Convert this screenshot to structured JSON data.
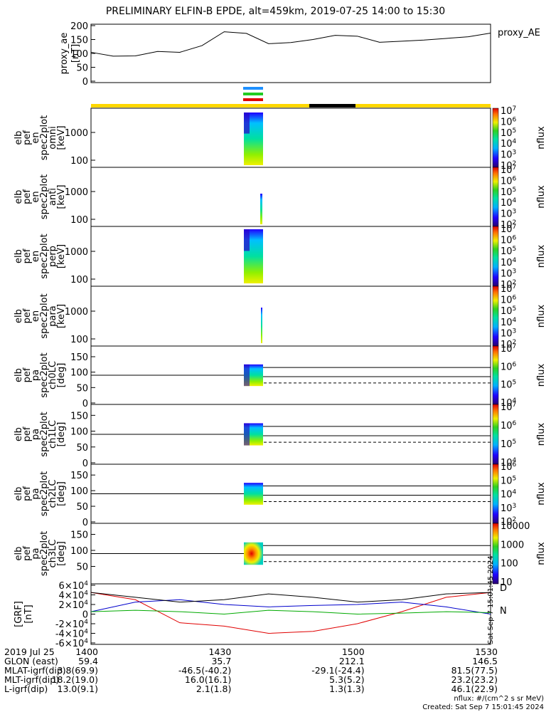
{
  "title": "PRELIMINARY ELFIN-B EPDE, alt=459km, 2019-07-25 14:00 to 15:30",
  "chart_data": [
    {
      "type": "line",
      "name": "proxy_ae",
      "ylabel": "proxy_ae [nT]",
      "legend": "proxy_AE",
      "ylim": [
        0,
        200
      ],
      "yticks": [
        "0",
        "50",
        "100",
        "150",
        "200"
      ],
      "x": [
        0,
        5,
        10,
        15,
        20,
        25,
        30,
        35,
        40,
        45,
        50,
        55,
        60,
        65,
        70,
        75,
        80,
        85,
        90
      ],
      "values": [
        104,
        90,
        91,
        107,
        104,
        128,
        178,
        172,
        135,
        139,
        150,
        165,
        162,
        140,
        144,
        148,
        154,
        160,
        173
      ]
    },
    {
      "type": "heatmap",
      "name": "elb_pef_en_spec2plot_omni",
      "ylabel": "elb pef en spec2plot omni [keV]",
      "yticks": [
        "100",
        "1000"
      ],
      "colorbar": [
        "10^2",
        "10^3",
        "10^4",
        "10^5",
        "10^6",
        "10^7"
      ],
      "zlabel": "nflux"
    },
    {
      "type": "heatmap",
      "name": "elb_pef_en_spec2plot_anti",
      "ylabel": "elb pef en spec2plot anti [keV]",
      "yticks": [
        "100",
        "1000"
      ],
      "colorbar": [
        "10^2",
        "10^3",
        "10^4",
        "10^5",
        "10^6",
        "10^7"
      ],
      "zlabel": "nflux"
    },
    {
      "type": "heatmap",
      "name": "elb_pef_en_spec2plot_perp",
      "ylabel": "elb pef en spec2plot perp [keV]",
      "yticks": [
        "100",
        "1000"
      ],
      "colorbar": [
        "10^2",
        "10^3",
        "10^4",
        "10^5",
        "10^6",
        "10^7"
      ],
      "zlabel": "nflux"
    },
    {
      "type": "heatmap",
      "name": "elb_pef_en_spec2plot_para",
      "ylabel": "elb pef en spec2plot para [keV]",
      "yticks": [
        "100",
        "1000"
      ],
      "colorbar": [
        "10^2",
        "10^3",
        "10^4",
        "10^5",
        "10^6",
        "10^7"
      ],
      "zlabel": "nflux"
    },
    {
      "type": "heatmap",
      "name": "elb_pef_pa_spec2plot_ch0LC",
      "ylabel": "elb pef pa spec2plot ch0LC [deg]",
      "yticks": [
        "0",
        "50",
        "100",
        "150"
      ],
      "colorbar": [
        "10^4",
        "10^5",
        "10^6",
        "10^7"
      ],
      "zlabel": "nflux"
    },
    {
      "type": "heatmap",
      "name": "elb_pef_pa_spec2plot_ch1LC",
      "ylabel": "elb pef pa spec2plot ch1LC [deg]",
      "yticks": [
        "0",
        "50",
        "100",
        "150"
      ],
      "colorbar": [
        "10^4",
        "10^5",
        "10^6",
        "10^7"
      ],
      "zlabel": "nflux"
    },
    {
      "type": "heatmap",
      "name": "elb_pef_pa_spec2plot_ch2LC",
      "ylabel": "elb pef pa spec2plot ch2LC [deg]",
      "yticks": [
        "0",
        "50",
        "100",
        "150"
      ],
      "colorbar": [
        "10^2",
        "10^3",
        "10^4",
        "10^5",
        "10^6"
      ],
      "zlabel": "nflux"
    },
    {
      "type": "heatmap",
      "name": "elb_pef_pa_spec2plot_ch3LC",
      "ylabel": "elb pef pa spec2plot ch3LC [deg]",
      "yticks": [
        "50",
        "100",
        "150"
      ],
      "colorbar": [
        "10",
        "100",
        "1000",
        "10000"
      ],
      "zlabel": "nflux"
    },
    {
      "type": "line",
      "name": "B_GRF",
      "ylabel": "[GRF] [nT]",
      "yticks": [
        "-6×10^4",
        "-4×10^4",
        "-2×10^4",
        "0",
        "2×10^4",
        "4×10^4",
        "6×10^4"
      ],
      "ylim": [
        -60000,
        60000
      ],
      "legend": [
        "D",
        "N"
      ],
      "x": [
        0,
        10,
        20,
        30,
        40,
        50,
        60,
        70,
        80,
        90
      ],
      "series": [
        {
          "name": "D",
          "color": "#e00000",
          "values": [
            45000,
            30000,
            -18000,
            -25000,
            -40000,
            -36000,
            -20000,
            5000,
            35000,
            45000
          ]
        },
        {
          "name": "N",
          "color": "#0000cc",
          "values": [
            5000,
            25000,
            30000,
            20000,
            15000,
            18000,
            20000,
            25000,
            15000,
            0
          ]
        },
        {
          "name": "",
          "color": "#000000",
          "values": [
            45000,
            35000,
            25000,
            30000,
            42000,
            35000,
            25000,
            30000,
            42000,
            45000
          ]
        },
        {
          "name": "",
          "color": "#00aa00",
          "values": [
            5000,
            8000,
            5000,
            0,
            8000,
            5000,
            0,
            2000,
            5000,
            3000
          ]
        }
      ]
    }
  ],
  "time_axis": [
    "1400",
    "1430",
    "1500",
    "1530"
  ],
  "bottom_table": {
    "rows": [
      {
        "label": "2019 Jul 25",
        "values": [
          "1400",
          "1430",
          "1500",
          "1530"
        ]
      },
      {
        "label": "GLON (east)",
        "values": [
          "59.4",
          "35.7",
          "212.1",
          "146.5"
        ]
      },
      {
        "label": "MLAT-igrf(dip)",
        "values": [
          "3.8(69.9)",
          "-46.5(-40.2)",
          "-29.1(-24.4)",
          "81.5(77.5)"
        ]
      },
      {
        "label": "MLT-igrf(dip)",
        "values": [
          "18.2(19.0)",
          "16.0(16.1)",
          "5.3(5.2)",
          "23.2(23.2)"
        ]
      },
      {
        "label": "L-igrf(dip)",
        "values": [
          "13.0(9.1)",
          "2.1(1.8)",
          "1.3(1.3)",
          "46.1(22.9)"
        ]
      }
    ]
  },
  "footer": {
    "units": "nflux: #/(cm^2 s sr MeV)",
    "created": "Created: Sat Sep  7 15:01:45 2024",
    "side_stamp": "Sat Sep  7 15:01:45 2024"
  },
  "colors": {
    "sunlit": "#ffd700",
    "shadow": "#000000",
    "band1": "#1e90ff",
    "band2": "#22cc22",
    "band3": "#e00000"
  }
}
